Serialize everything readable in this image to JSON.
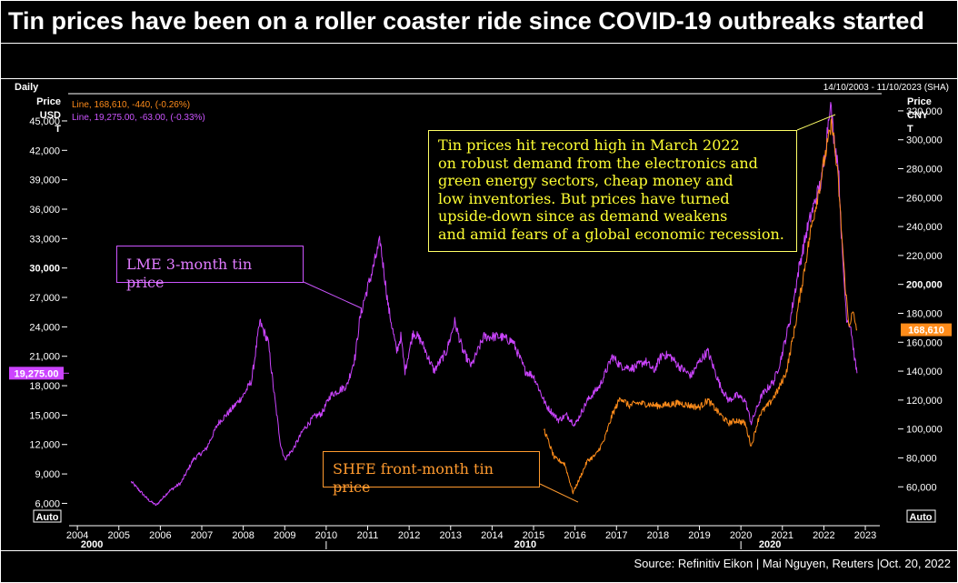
{
  "title": "Tin prices have been on a roller coaster ride since COVID-19 outbreaks started",
  "source": "Source: Refinitiv Eikon | Mai Nguyen, Reuters |Oct. 20, 2022",
  "colors": {
    "lme": "#cc44ff",
    "shfe": "#ff8c1a",
    "note": "#ffff33",
    "bg": "#000000"
  },
  "chart_data": {
    "type": "line",
    "title": "Tin prices have been on a roller coaster ride since COVID-19 outbreaks started",
    "frequency_label": "Daily",
    "date_range_label": "14/10/2003 - 11/10/2023 (SHA)",
    "left_axis": {
      "label_lines": [
        "Price",
        "USD",
        "T"
      ],
      "min": 4000,
      "max": 47500,
      "ticks": [
        "45,000",
        "42,000",
        "39,000",
        "36,000",
        "33,000",
        "30,000",
        "27,000",
        "24,000",
        "21,000",
        "18,000",
        "15,000",
        "12,000",
        "9,000",
        "6,000"
      ],
      "tick_values": [
        45000,
        42000,
        39000,
        36000,
        33000,
        30000,
        27000,
        24000,
        21000,
        18000,
        15000,
        12000,
        9000,
        6000
      ],
      "auto_label": "Auto"
    },
    "right_axis": {
      "label_lines": [
        "Price",
        "CNY",
        "T"
      ],
      "min": 35000,
      "max": 330000,
      "ticks": [
        "320,000",
        "300,000",
        "280,000",
        "260,000",
        "240,000",
        "220,000",
        "200,000",
        "180,000",
        "160,000",
        "140,000",
        "120,000",
        "100,000",
        "80,000",
        "60,000"
      ],
      "tick_values": [
        320000,
        300000,
        280000,
        260000,
        240000,
        220000,
        200000,
        180000,
        160000,
        140000,
        120000,
        100000,
        80000,
        60000
      ],
      "auto_label": "Auto"
    },
    "x_axis": {
      "ticks": [
        "2004",
        "2005",
        "2006",
        "2007",
        "2008",
        "2009",
        "2010",
        "2011",
        "2012",
        "2013",
        "2014",
        "2015",
        "2016",
        "2017",
        "2018",
        "2019",
        "2020",
        "2021",
        "2022",
        "2023"
      ],
      "tick_values": [
        2004,
        2005,
        2006,
        2007,
        2008,
        2009,
        2010,
        2011,
        2012,
        2013,
        2014,
        2015,
        2016,
        2017,
        2018,
        2019,
        2020,
        2021,
        2022,
        2023
      ],
      "decades": [
        "2000",
        "2010",
        "2020"
      ],
      "decade_values": [
        2004.35,
        2014.8,
        2020.7
      ],
      "range": [
        2003.8,
        2023.35
      ]
    },
    "legend": [
      {
        "text": "Line, 168,610, -440, (-0.26%)",
        "name": "Line",
        "value": "168,610",
        "change": "-440",
        "pct": "(-0.26%)"
      },
      {
        "text": "Line, 19,275.00, -63.00, (-0.33%)",
        "name": "Line",
        "value": "19,275.00",
        "change": "-63.00",
        "pct": "(-0.33%)"
      }
    ],
    "last_labels": {
      "lme": "19,275.00",
      "shfe": "168,610"
    },
    "series": [
      {
        "name": "LME 3-month tin price",
        "axis": "left",
        "color": "#cc44ff",
        "points": [
          [
            2005.3,
            8200
          ],
          [
            2005.7,
            6400
          ],
          [
            2005.9,
            5800
          ],
          [
            2006.2,
            7200
          ],
          [
            2006.5,
            8100
          ],
          [
            2006.8,
            10500
          ],
          [
            2007.1,
            11500
          ],
          [
            2007.4,
            14200
          ],
          [
            2007.7,
            15500
          ],
          [
            2008.0,
            17000
          ],
          [
            2008.2,
            18500
          ],
          [
            2008.4,
            24500
          ],
          [
            2008.5,
            23500
          ],
          [
            2008.6,
            22500
          ],
          [
            2008.75,
            17000
          ],
          [
            2008.9,
            12000
          ],
          [
            2009.0,
            10500
          ],
          [
            2009.2,
            11500
          ],
          [
            2009.45,
            13500
          ],
          [
            2009.7,
            14800
          ],
          [
            2009.9,
            15200
          ],
          [
            2010.1,
            17000
          ],
          [
            2010.3,
            17500
          ],
          [
            2010.5,
            18000
          ],
          [
            2010.7,
            21000
          ],
          [
            2010.8,
            24500
          ],
          [
            2010.9,
            26500
          ],
          [
            2011.1,
            29500
          ],
          [
            2011.3,
            32800
          ],
          [
            2011.5,
            26000
          ],
          [
            2011.7,
            21500
          ],
          [
            2011.8,
            23000
          ],
          [
            2011.9,
            19500
          ],
          [
            2012.1,
            23500
          ],
          [
            2012.3,
            22500
          ],
          [
            2012.6,
            19500
          ],
          [
            2012.9,
            21500
          ],
          [
            2013.1,
            24500
          ],
          [
            2013.3,
            21500
          ],
          [
            2013.5,
            20000
          ],
          [
            2013.8,
            23000
          ],
          [
            2014.2,
            23000
          ],
          [
            2014.5,
            22500
          ],
          [
            2014.8,
            19500
          ],
          [
            2015.0,
            19000
          ],
          [
            2015.3,
            16000
          ],
          [
            2015.6,
            14500
          ],
          [
            2015.8,
            15000
          ],
          [
            2016.0,
            14000
          ],
          [
            2016.3,
            16500
          ],
          [
            2016.6,
            18000
          ],
          [
            2016.9,
            21000
          ],
          [
            2017.1,
            20000
          ],
          [
            2017.4,
            19800
          ],
          [
            2017.7,
            20500
          ],
          [
            2017.9,
            19500
          ],
          [
            2018.1,
            21200
          ],
          [
            2018.3,
            21000
          ],
          [
            2018.5,
            20000
          ],
          [
            2018.8,
            19000
          ],
          [
            2019.0,
            20500
          ],
          [
            2019.2,
            21500
          ],
          [
            2019.5,
            18000
          ],
          [
            2019.7,
            16500
          ],
          [
            2019.9,
            17000
          ],
          [
            2020.1,
            16500
          ],
          [
            2020.25,
            14200
          ],
          [
            2020.5,
            17000
          ],
          [
            2020.8,
            18500
          ],
          [
            2020.95,
            20500
          ],
          [
            2021.2,
            25000
          ],
          [
            2021.4,
            30000
          ],
          [
            2021.6,
            34000
          ],
          [
            2021.8,
            37000
          ],
          [
            2021.95,
            39000
          ],
          [
            2022.05,
            42500
          ],
          [
            2022.15,
            47000
          ],
          [
            2022.25,
            43000
          ],
          [
            2022.35,
            40500
          ],
          [
            2022.45,
            31000
          ],
          [
            2022.55,
            25000
          ],
          [
            2022.65,
            24000
          ],
          [
            2022.75,
            20500
          ],
          [
            2022.8,
            19275
          ]
        ]
      },
      {
        "name": "SHFE front-month tin price",
        "axis": "right",
        "color": "#ff8c1a",
        "points": [
          [
            2015.25,
            100000
          ],
          [
            2015.35,
            92000
          ],
          [
            2015.5,
            80000
          ],
          [
            2015.75,
            76000
          ],
          [
            2015.95,
            56000
          ],
          [
            2016.1,
            65000
          ],
          [
            2016.3,
            78000
          ],
          [
            2016.5,
            82000
          ],
          [
            2016.7,
            92000
          ],
          [
            2016.9,
            110000
          ],
          [
            2017.1,
            122000
          ],
          [
            2017.3,
            116000
          ],
          [
            2017.5,
            118000
          ],
          [
            2017.8,
            117000
          ],
          [
            2018.0,
            116000
          ],
          [
            2018.3,
            117000
          ],
          [
            2018.5,
            118000
          ],
          [
            2018.8,
            116000
          ],
          [
            2019.0,
            115000
          ],
          [
            2019.2,
            120000
          ],
          [
            2019.5,
            110000
          ],
          [
            2019.7,
            104000
          ],
          [
            2019.9,
            106000
          ],
          [
            2020.1,
            104000
          ],
          [
            2020.25,
            88000
          ],
          [
            2020.45,
            110000
          ],
          [
            2020.7,
            118000
          ],
          [
            2020.9,
            127000
          ],
          [
            2021.1,
            140000
          ],
          [
            2021.3,
            170000
          ],
          [
            2021.5,
            205000
          ],
          [
            2021.7,
            240000
          ],
          [
            2021.9,
            268000
          ],
          [
            2022.05,
            292000
          ],
          [
            2022.2,
            312000
          ],
          [
            2022.35,
            270000
          ],
          [
            2022.5,
            205000
          ],
          [
            2022.6,
            172000
          ],
          [
            2022.7,
            180000
          ],
          [
            2022.8,
            168610
          ]
        ]
      }
    ],
    "annotations": [
      {
        "text": "LME 3-month tin price",
        "target": [
          2010.8,
          26500
        ]
      },
      {
        "text": "SHFE front-month tin price",
        "target": [
          2015.95,
          56000
        ]
      },
      {
        "lines": [
          "Tin prices hit record high in March 2022",
          "on robust demand from the electronics and",
          "green energy sectors, cheap money and",
          "low inventories. But prices have turned",
          "upside-down since as demand weakens",
          "and amid fears of a global economic recession."
        ],
        "target": [
          2022.15,
          47000
        ]
      }
    ]
  }
}
